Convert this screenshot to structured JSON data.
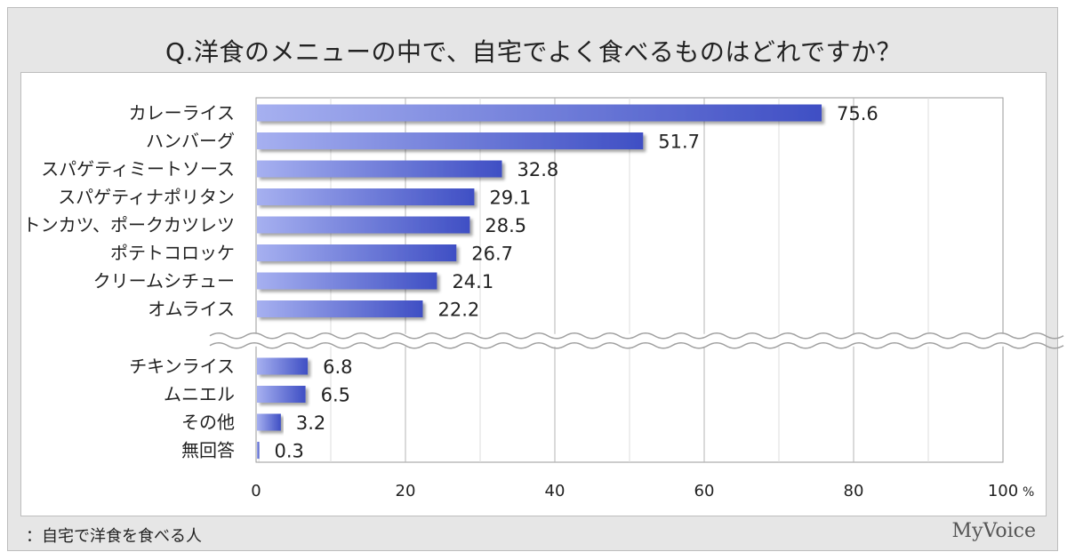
{
  "title": "Q.洋食のメニューの中で、自宅でよく食べるものはどれですか？",
  "footer_note": "：自宅で洋食を食べる人",
  "brand": "MyVoice",
  "chart_data": {
    "type": "bar",
    "orientation": "horizontal",
    "categories": [
      "カレーライス",
      "ハンバーグ",
      "スパゲティミートソース",
      "スパゲティナポリタン",
      "トンカツ、ポークカツレツ",
      "ポテトコロッケ",
      "クリームシチュー",
      "オムライス",
      "チキンライス",
      "ムニエル",
      "その他",
      "無回答"
    ],
    "values": [
      75.6,
      51.7,
      32.8,
      29.1,
      28.5,
      26.7,
      24.1,
      22.2,
      6.8,
      6.5,
      3.2,
      0.3
    ],
    "value_labels": [
      "75.6",
      "51.7",
      "32.8",
      "29.1",
      "28.5",
      "26.7",
      "24.1",
      "22.2",
      "6.8",
      "6.5",
      "3.2",
      "0.3"
    ],
    "xlim": [
      0,
      100
    ],
    "xticks": [
      "0",
      "20",
      "40",
      "60",
      "80",
      "100"
    ],
    "x_unit": "%",
    "axis_break_after_index": 7,
    "grid": true,
    "bar_color_start": "#a6b0f0",
    "bar_color_end": "#3f4fc4"
  }
}
